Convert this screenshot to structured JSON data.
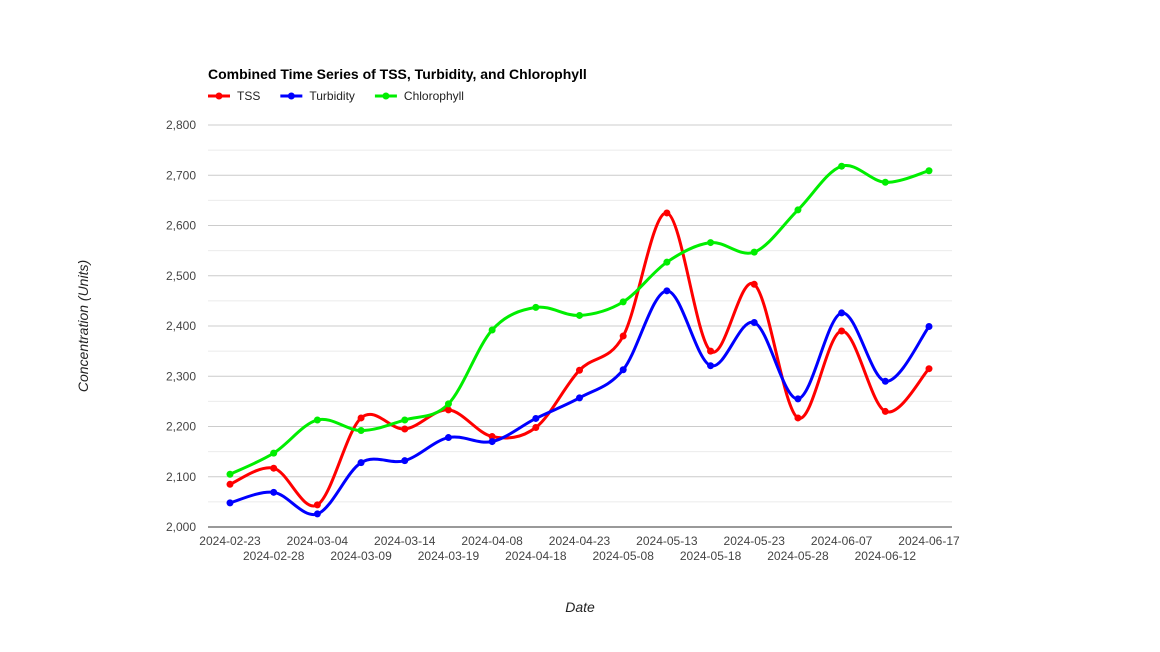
{
  "chart_data": {
    "type": "line",
    "title": "Combined Time Series of TSS, Turbidity, and Chlorophyll",
    "xlabel": "Date",
    "ylabel": "Concentration (Units)",
    "legend_position": "top-left",
    "grid": true,
    "ylim": [
      2000,
      2800
    ],
    "yticks": [
      2000,
      2100,
      2200,
      2300,
      2400,
      2500,
      2600,
      2700,
      2800
    ],
    "ytick_labels": [
      "2,000",
      "2,100",
      "2,200",
      "2,300",
      "2,400",
      "2,500",
      "2,600",
      "2,700",
      "2,800"
    ],
    "x": [
      "2024-02-23",
      "2024-02-28",
      "2024-03-04",
      "2024-03-09",
      "2024-03-14",
      "2024-03-19",
      "2024-04-08",
      "2024-04-18",
      "2024-04-23",
      "2024-05-08",
      "2024-05-13",
      "2024-05-18",
      "2024-05-23",
      "2024-05-28",
      "2024-06-07",
      "2024-06-12",
      "2024-06-17"
    ],
    "series": [
      {
        "name": "TSS",
        "color": "#ff0000",
        "values": [
          2085,
          2117,
          2044,
          2217,
          2195,
          2233,
          2180,
          2198,
          2312,
          2380,
          2625,
          2350,
          2483,
          2217,
          2390,
          2230,
          2315
        ]
      },
      {
        "name": "Turbidity",
        "color": "#0000ff",
        "values": [
          2048,
          2069,
          2026,
          2128,
          2132,
          2178,
          2170,
          2216,
          2257,
          2313,
          2470,
          2321,
          2407,
          2255,
          2426,
          2290,
          2399
        ]
      },
      {
        "name": "Chlorophyll",
        "color": "#00ee00",
        "values": [
          2105,
          2147,
          2213,
          2192,
          2213,
          2245,
          2392,
          2437,
          2421,
          2448,
          2527,
          2566,
          2547,
          2631,
          2718,
          2686,
          2709
        ]
      }
    ]
  }
}
